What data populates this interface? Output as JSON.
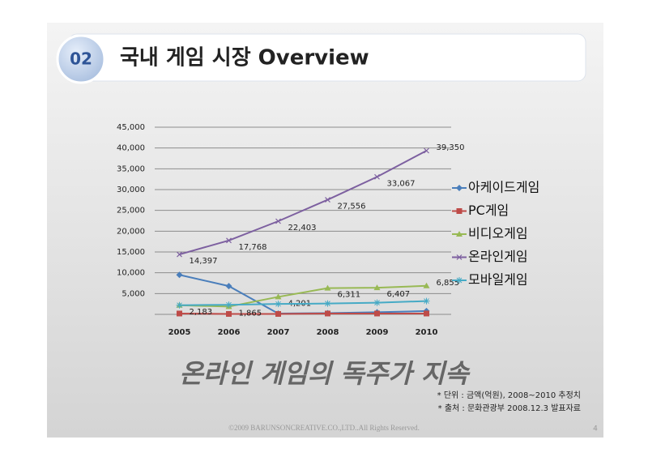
{
  "header": {
    "number": "02",
    "title": "국내 게임 시장 Overview"
  },
  "chart_data": {
    "type": "line",
    "categories": [
      "2005",
      "2006",
      "2007",
      "2008",
      "2009",
      "2010"
    ],
    "ylim": [
      0,
      45000
    ],
    "yticks": [
      {
        "value": 5000,
        "label": "5,000"
      },
      {
        "value": 10000,
        "label": "10,000"
      },
      {
        "value": 15000,
        "label": "15,000"
      },
      {
        "value": 20000,
        "label": "20,000"
      },
      {
        "value": 25000,
        "label": "25,000"
      },
      {
        "value": 30000,
        "label": "30,000"
      },
      {
        "value": 35000,
        "label": "35,000"
      },
      {
        "value": 40000,
        "label": "40,000"
      },
      {
        "value": 45000,
        "label": "45,000"
      }
    ],
    "grid": true,
    "series": [
      {
        "name": "아케이드게임",
        "color": "#4a7ebb",
        "marker": "diamond",
        "values": [
          9500,
          6800,
          200,
          300,
          500,
          800
        ]
      },
      {
        "name": "PC게임",
        "color": "#be4b48",
        "marker": "square",
        "values": [
          200,
          100,
          100,
          200,
          200,
          200
        ]
      },
      {
        "name": "비디오게임",
        "color": "#98b954",
        "marker": "triangle",
        "values": [
          2183,
          1865,
          4201,
          6311,
          6407,
          6855
        ],
        "value_labels": [
          "2,183",
          "1,865",
          "4,201",
          "6,311",
          "6,407",
          "6,855"
        ]
      },
      {
        "name": "온라인게임",
        "color": "#7d60a0",
        "marker": "x",
        "values": [
          14397,
          17768,
          22403,
          27556,
          33067,
          39350
        ],
        "value_labels": [
          "14,397",
          "17,768",
          "22,403",
          "27,556",
          "33,067",
          "39,350"
        ]
      },
      {
        "name": "모바일게임",
        "color": "#46aac5",
        "marker": "star",
        "values": [
          2200,
          2300,
          2500,
          2600,
          2800,
          3200
        ]
      }
    ]
  },
  "subtitle": "온라인 게임의 독주가 지속",
  "notes": [
    "* 단위 : 금액(억원), 2008~2010 추정치",
    "* 출처 : 문화관광부 2008.12.3 발표자료"
  ],
  "footer": "©2009 BARUNSONCREATIVE.CO.,LTD..All Rights Reserved.",
  "page": "4"
}
